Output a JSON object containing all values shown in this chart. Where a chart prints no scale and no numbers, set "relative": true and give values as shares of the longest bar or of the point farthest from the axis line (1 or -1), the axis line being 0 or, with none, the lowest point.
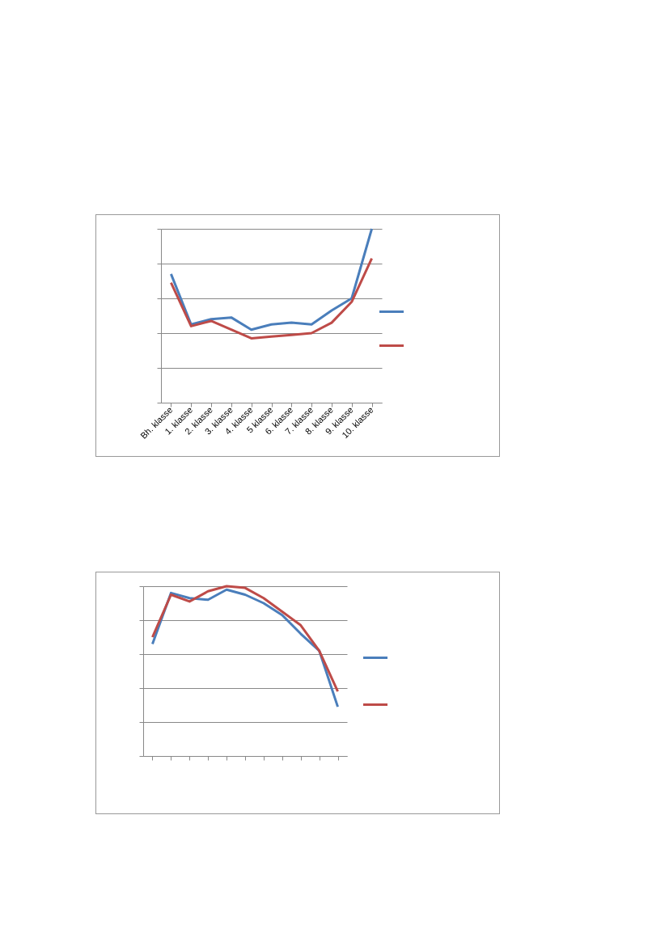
{
  "chart_data": [
    {
      "type": "line",
      "relative": true,
      "grid": "y",
      "categories": [
        "Bh. klasse",
        "1. klasse",
        "2. klasse",
        "3. klasse",
        "4. klasse",
        "5 klasse",
        "6. klasse",
        "7. klasse",
        "8. klasse",
        "9. klasse",
        "10. klasse"
      ],
      "series": [
        {
          "color": "#4a7ebb",
          "values": [
            0.74,
            0.45,
            0.48,
            0.49,
            0.42,
            0.45,
            0.46,
            0.45,
            0.53,
            0.6,
            1
          ]
        },
        {
          "color": "#be4b48",
          "values": [
            0.69,
            0.44,
            0.47,
            0.42,
            0.37,
            0.38,
            0.39,
            0.4,
            0.46,
            0.58,
            0.83
          ]
        }
      ]
    },
    {
      "type": "line",
      "relative": true,
      "grid": "y",
      "categories": [
        null,
        null,
        null,
        null,
        null,
        null,
        null,
        null,
        null,
        null,
        null
      ],
      "series": [
        {
          "color": "#4a7ebb",
          "values": [
            0.66,
            0.96,
            0.93,
            0.92,
            0.98,
            0.95,
            0.9,
            0.83,
            0.72,
            0.62,
            0.29
          ]
        },
        {
          "color": "#be4b48",
          "values": [
            0.7,
            0.95,
            0.91,
            0.97,
            1,
            0.99,
            0.93,
            0.85,
            0.77,
            0.62,
            0.38
          ]
        }
      ]
    }
  ]
}
